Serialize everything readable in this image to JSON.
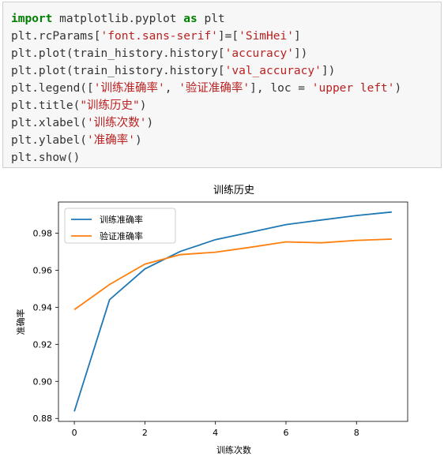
{
  "code": {
    "lines": [
      [
        {
          "t": "kw",
          "v": "import"
        },
        {
          "t": "p",
          "v": " matplotlib.pyplot "
        },
        {
          "t": "kw",
          "v": "as"
        },
        {
          "t": "p",
          "v": " plt"
        }
      ],
      [
        {
          "t": "p",
          "v": "plt.rcParams["
        },
        {
          "t": "str",
          "v": "'font.sans-serif'"
        },
        {
          "t": "p",
          "v": "]=["
        },
        {
          "t": "str",
          "v": "'SimHei'"
        },
        {
          "t": "p",
          "v": "]"
        }
      ],
      [
        {
          "t": "p",
          "v": "plt.plot(train_history.history["
        },
        {
          "t": "str",
          "v": "'accuracy'"
        },
        {
          "t": "p",
          "v": "])"
        }
      ],
      [
        {
          "t": "p",
          "v": "plt.plot(train_history.history["
        },
        {
          "t": "str",
          "v": "'val_accuracy'"
        },
        {
          "t": "p",
          "v": "])"
        }
      ],
      [
        {
          "t": "p",
          "v": "plt.legend(["
        },
        {
          "t": "str",
          "v": "'训练准确率'"
        },
        {
          "t": "p",
          "v": ", "
        },
        {
          "t": "str",
          "v": "'验证准确率'"
        },
        {
          "t": "p",
          "v": "], loc = "
        },
        {
          "t": "str",
          "v": "'upper left'"
        },
        {
          "t": "p",
          "v": ")"
        }
      ],
      [
        {
          "t": "p",
          "v": "plt.title("
        },
        {
          "t": "str",
          "v": "\"训练历史\""
        },
        {
          "t": "p",
          "v": ")"
        }
      ],
      [
        {
          "t": "p",
          "v": "plt.xlabel("
        },
        {
          "t": "str",
          "v": "'训练次数'"
        },
        {
          "t": "p",
          "v": ")"
        }
      ],
      [
        {
          "t": "p",
          "v": "plt.ylabel("
        },
        {
          "t": "str",
          "v": "'准确率'"
        },
        {
          "t": "p",
          "v": ")"
        }
      ],
      [
        {
          "t": "p",
          "v": "plt.show()"
        }
      ]
    ]
  },
  "chart_data": {
    "type": "line",
    "title": "训练历史",
    "xlabel": "训练次数",
    "ylabel": "准确率",
    "x": [
      0,
      1,
      2,
      3,
      4,
      5,
      6,
      7,
      8,
      9
    ],
    "series": [
      {
        "name": "训练准确率",
        "color": "#1f77b4",
        "values": [
          0.8838,
          0.9441,
          0.9607,
          0.9701,
          0.9765,
          0.9805,
          0.9846,
          0.9871,
          0.9895,
          0.9914
        ]
      },
      {
        "name": "验证准确率",
        "color": "#ff7f0e",
        "values": [
          0.9387,
          0.9523,
          0.9633,
          0.9684,
          0.9697,
          0.9724,
          0.9753,
          0.9748,
          0.9761,
          0.9768
        ]
      }
    ],
    "xticks": [
      0,
      2,
      4,
      6,
      8
    ],
    "yticks": [
      0.88,
      0.9,
      0.92,
      0.94,
      0.96,
      0.98
    ],
    "ytick_labels": [
      "0.88",
      "0.90",
      "0.92",
      "0.94",
      "0.96",
      "0.98"
    ],
    "xlim": [
      -0.45,
      9.45
    ],
    "ylim": [
      0.8784,
      0.9968
    ],
    "legend": "upper left",
    "grid": false
  }
}
